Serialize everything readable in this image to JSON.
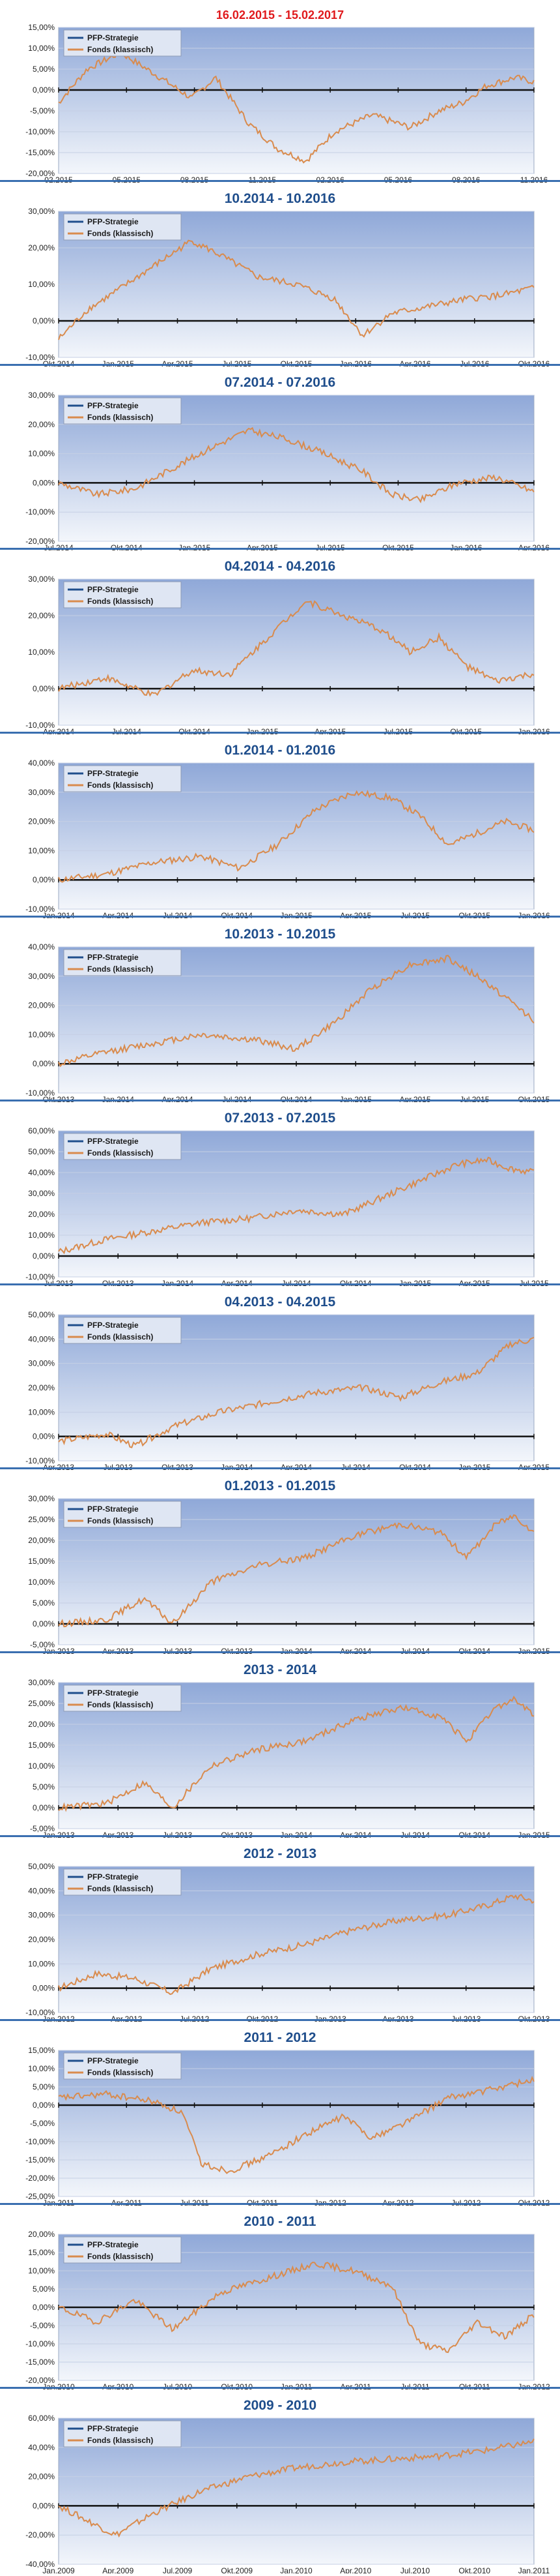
{
  "chart_data": [
    {
      "type": "line",
      "title": "16.02.2015 - 15.02.2017",
      "tick_labels": [
        "02.2015",
        "05.2015",
        "08.2015",
        "11.2015",
        "02.2016",
        "05.2016",
        "08.2016",
        "11.2016"
      ],
      "y_ticks": [
        "15,00%",
        "10,00%",
        "5,00%",
        "0,00%",
        "-5,00%",
        "-10,00%",
        "-15,00%",
        "-20,00%"
      ],
      "ylim": [
        -20,
        15
      ],
      "series": [
        {
          "name": "PFP-Strategie",
          "color": "#1f4e8c"
        },
        {
          "name": "Fonds (klassisch)",
          "color": "#d98b4d"
        }
      ],
      "points": [
        [
          0,
          -3
        ],
        [
          0.06,
          5
        ],
        [
          0.13,
          9
        ],
        [
          0.2,
          4
        ],
        [
          0.28,
          -2
        ],
        [
          0.33,
          3
        ],
        [
          0.4,
          -8
        ],
        [
          0.46,
          -14
        ],
        [
          0.52,
          -17
        ],
        [
          0.58,
          -10
        ],
        [
          0.66,
          -6
        ],
        [
          0.74,
          -9
        ],
        [
          0.8,
          -5
        ],
        [
          0.85,
          -3
        ],
        [
          0.9,
          1
        ],
        [
          0.96,
          3
        ],
        [
          1,
          2
        ]
      ],
      "legend": "top-left"
    },
    {
      "type": "line",
      "title": "10.2014 - 10.2016",
      "tick_labels": [
        "Okt.2014",
        "Jan.2015",
        "Apr.2015",
        "Jul.2015",
        "Okt.2015",
        "Jan.2016",
        "Apr.2016",
        "Jul.2016",
        "Okt.2016"
      ],
      "y_ticks": [
        "30,00%",
        "20,00%",
        "10,00%",
        "0,00%",
        "-10,00%"
      ],
      "ylim": [
        -10,
        30
      ],
      "series": [
        {
          "name": "PFP-Strategie",
          "color": "#1f4e8c"
        },
        {
          "name": "Fonds (klassisch)",
          "color": "#d98b4d"
        }
      ],
      "points": [
        [
          0,
          -5
        ],
        [
          0.06,
          3
        ],
        [
          0.12,
          8
        ],
        [
          0.2,
          15
        ],
        [
          0.28,
          22
        ],
        [
          0.34,
          18
        ],
        [
          0.42,
          12
        ],
        [
          0.5,
          10
        ],
        [
          0.58,
          6
        ],
        [
          0.64,
          -4
        ],
        [
          0.7,
          2
        ],
        [
          0.78,
          4
        ],
        [
          0.86,
          6
        ],
        [
          0.93,
          7
        ],
        [
          1,
          9
        ]
      ],
      "legend": "top-left"
    },
    {
      "type": "line",
      "title": "07.2014 - 07.2016",
      "tick_labels": [
        "Jul.2014",
        "Okt.2014",
        "Jan.2015",
        "Apr.2015",
        "Jul.2015",
        "Okt.2015",
        "Jan.2016",
        "Apr.2016"
      ],
      "y_ticks": [
        "30,00%",
        "20,00%",
        "10,00%",
        "0,00%",
        "-10,00%",
        "-20,00%"
      ],
      "ylim": [
        -20,
        30
      ],
      "series": [
        {
          "name": "PFP-Strategie",
          "color": "#1f4e8c"
        },
        {
          "name": "Fonds (klassisch)",
          "color": "#d98b4d"
        }
      ],
      "points": [
        [
          0,
          0
        ],
        [
          0.08,
          -4
        ],
        [
          0.16,
          -2
        ],
        [
          0.24,
          5
        ],
        [
          0.32,
          12
        ],
        [
          0.4,
          18
        ],
        [
          0.48,
          15
        ],
        [
          0.56,
          10
        ],
        [
          0.64,
          4
        ],
        [
          0.7,
          -4
        ],
        [
          0.76,
          -6
        ],
        [
          0.84,
          0
        ],
        [
          0.92,
          2
        ],
        [
          1,
          -3
        ]
      ],
      "legend": "top-left"
    },
    {
      "type": "line",
      "title": "04.2014 - 04.2016",
      "tick_labels": [
        "Apr.2014",
        "Jul.2014",
        "Okt.2014",
        "Jan.2015",
        "Apr.2015",
        "Jul.2015",
        "Okt.2015",
        "Jan.2016"
      ],
      "y_ticks": [
        "30,00%",
        "20,00%",
        "10,00%",
        "0,00%",
        "-10,00%"
      ],
      "ylim": [
        -10,
        30
      ],
      "series": [
        {
          "name": "PFP-Strategie",
          "color": "#1f4e8c"
        },
        {
          "name": "Fonds (klassisch)",
          "color": "#d98b4d"
        }
      ],
      "points": [
        [
          0,
          0
        ],
        [
          0.1,
          3
        ],
        [
          0.2,
          -2
        ],
        [
          0.28,
          5
        ],
        [
          0.36,
          4
        ],
        [
          0.44,
          14
        ],
        [
          0.52,
          24
        ],
        [
          0.6,
          20
        ],
        [
          0.68,
          16
        ],
        [
          0.74,
          10
        ],
        [
          0.8,
          14
        ],
        [
          0.86,
          6
        ],
        [
          0.92,
          2
        ],
        [
          1,
          4
        ]
      ],
      "legend": "top-left"
    },
    {
      "type": "line",
      "title": "01.2014 - 01.2016",
      "tick_labels": [
        "Jan.2014",
        "Apr.2014",
        "Jul.2014",
        "Okt.2014",
        "Jan.2015",
        "Apr.2015",
        "Jul.2015",
        "Okt.2015",
        "Jan.2016"
      ],
      "y_ticks": [
        "40,00%",
        "30,00%",
        "20,00%",
        "10,00%",
        "0,00%",
        "-10,00%"
      ],
      "ylim": [
        -10,
        40
      ],
      "series": [
        {
          "name": "PFP-Strategie",
          "color": "#1f4e8c"
        },
        {
          "name": "Fonds (klassisch)",
          "color": "#d98b4d"
        }
      ],
      "points": [
        [
          0,
          0
        ],
        [
          0.1,
          2
        ],
        [
          0.2,
          6
        ],
        [
          0.3,
          8
        ],
        [
          0.38,
          4
        ],
        [
          0.46,
          12
        ],
        [
          0.54,
          24
        ],
        [
          0.62,
          30
        ],
        [
          0.7,
          28
        ],
        [
          0.76,
          22
        ],
        [
          0.82,
          12
        ],
        [
          0.88,
          16
        ],
        [
          0.94,
          20
        ],
        [
          1,
          17
        ]
      ],
      "legend": "top-left"
    },
    {
      "type": "line",
      "title": "10.2013 - 10.2015",
      "tick_labels": [
        "Okt.2013",
        "Jan.2014",
        "Apr.2014",
        "Jul.2014",
        "Okt.2014",
        "Jan.2015",
        "Apr.2015",
        "Jul.2015",
        "Okt.2015"
      ],
      "y_ticks": [
        "40,00%",
        "30,00%",
        "20,00%",
        "10,00%",
        "0,00%",
        "-10,00%"
      ],
      "ylim": [
        -10,
        40
      ],
      "series": [
        {
          "name": "PFP-Strategie",
          "color": "#1f4e8c"
        },
        {
          "name": "Fonds (klassisch)",
          "color": "#d98b4d"
        }
      ],
      "points": [
        [
          0,
          0
        ],
        [
          0.1,
          4
        ],
        [
          0.2,
          7
        ],
        [
          0.3,
          10
        ],
        [
          0.42,
          8
        ],
        [
          0.5,
          5
        ],
        [
          0.58,
          14
        ],
        [
          0.66,
          26
        ],
        [
          0.74,
          34
        ],
        [
          0.82,
          36
        ],
        [
          0.88,
          30
        ],
        [
          0.93,
          24
        ],
        [
          1,
          15
        ]
      ],
      "legend": "top-left"
    },
    {
      "type": "line",
      "title": "07.2013 - 07.2015",
      "tick_labels": [
        "Jul.2013",
        "Okt.2013",
        "Jan.2014",
        "Apr.2014",
        "Jul.2014",
        "Okt.2014",
        "Jan.2015",
        "Apr.2015",
        "Jul.2015"
      ],
      "y_ticks": [
        "60,00%",
        "50,00%",
        "40,00%",
        "30,00%",
        "20,00%",
        "10,00%",
        "0,00%",
        "-10,00%"
      ],
      "ylim": [
        -10,
        60
      ],
      "series": [
        {
          "name": "PFP-Strategie",
          "color": "#1f4e8c"
        },
        {
          "name": "Fonds (klassisch)",
          "color": "#d98b4d"
        }
      ],
      "points": [
        [
          0,
          2
        ],
        [
          0.1,
          8
        ],
        [
          0.2,
          12
        ],
        [
          0.3,
          16
        ],
        [
          0.4,
          18
        ],
        [
          0.5,
          22
        ],
        [
          0.6,
          20
        ],
        [
          0.68,
          28
        ],
        [
          0.76,
          36
        ],
        [
          0.84,
          44
        ],
        [
          0.9,
          46
        ],
        [
          0.95,
          42
        ],
        [
          1,
          40
        ]
      ],
      "legend": "top-left"
    },
    {
      "type": "line",
      "title": "04.2013 - 04.2015",
      "tick_labels": [
        "Apr.2013",
        "Jul.2013",
        "Okt.2013",
        "Jan.2014",
        "Apr.2014",
        "Jul.2014",
        "Okt.2014",
        "Jan.2015",
        "Apr.2015"
      ],
      "y_ticks": [
        "50,00%",
        "40,00%",
        "30,00%",
        "20,00%",
        "10,00%",
        "0,00%",
        "-10,00%"
      ],
      "ylim": [
        -10,
        50
      ],
      "series": [
        {
          "name": "PFP-Strategie",
          "color": "#1f4e8c"
        },
        {
          "name": "Fonds (klassisch)",
          "color": "#d98b4d"
        }
      ],
      "points": [
        [
          0,
          -2
        ],
        [
          0.1,
          1
        ],
        [
          0.16,
          -4
        ],
        [
          0.24,
          4
        ],
        [
          0.34,
          10
        ],
        [
          0.44,
          14
        ],
        [
          0.54,
          18
        ],
        [
          0.64,
          20
        ],
        [
          0.72,
          16
        ],
        [
          0.8,
          22
        ],
        [
          0.88,
          26
        ],
        [
          0.95,
          38
        ],
        [
          1,
          40
        ]
      ],
      "legend": "top-left"
    },
    {
      "type": "line",
      "title": "01.2013 - 01.2015",
      "tick_labels": [
        "Jan.2013",
        "Apr.2013",
        "Jul.2013",
        "Okt.2013",
        "Jan.2014",
        "Apr.2014",
        "Jul.2014",
        "Okt.2014",
        "Jan.2015"
      ],
      "y_ticks": [
        "30,00%",
        "25,00%",
        "20,00%",
        "15,00%",
        "10,00%",
        "5,00%",
        "0,00%",
        "-5,00%"
      ],
      "ylim": [
        -5,
        30
      ],
      "series": [
        {
          "name": "PFP-Strategie",
          "color": "#1f4e8c"
        },
        {
          "name": "Fonds (klassisch)",
          "color": "#d98b4d"
        }
      ],
      "points": [
        [
          0,
          0
        ],
        [
          0.1,
          1
        ],
        [
          0.18,
          6
        ],
        [
          0.24,
          0
        ],
        [
          0.32,
          10
        ],
        [
          0.42,
          14
        ],
        [
          0.52,
          16
        ],
        [
          0.62,
          21
        ],
        [
          0.72,
          24
        ],
        [
          0.8,
          22
        ],
        [
          0.86,
          16
        ],
        [
          0.92,
          24
        ],
        [
          0.96,
          26
        ],
        [
          1,
          22
        ]
      ],
      "legend": "top-left"
    },
    {
      "type": "line",
      "title": "2013 - 2014",
      "tick_labels": [
        "Jan.2013",
        "Apr.2013",
        "Jul.2013",
        "Okt.2013",
        "Jan.2014",
        "Apr.2014",
        "Jul.2014",
        "Okt.2014",
        "Jan.2015"
      ],
      "y_ticks": [
        "30,00%",
        "25,00%",
        "20,00%",
        "15,00%",
        "10,00%",
        "5,00%",
        "0,00%",
        "-5,00%"
      ],
      "ylim": [
        -5,
        30
      ],
      "series": [
        {
          "name": "PFP-Strategie",
          "color": "#1f4e8c"
        },
        {
          "name": "Fonds (klassisch)",
          "color": "#d98b4d"
        }
      ],
      "points": [
        [
          0,
          0
        ],
        [
          0.1,
          1
        ],
        [
          0.18,
          6
        ],
        [
          0.24,
          0
        ],
        [
          0.32,
          10
        ],
        [
          0.42,
          14
        ],
        [
          0.52,
          16
        ],
        [
          0.62,
          21
        ],
        [
          0.72,
          24
        ],
        [
          0.8,
          22
        ],
        [
          0.86,
          16
        ],
        [
          0.92,
          24
        ],
        [
          0.96,
          26
        ],
        [
          1,
          22
        ]
      ],
      "legend": "top-left"
    },
    {
      "type": "line",
      "title": "2012 - 2013",
      "tick_labels": [
        "Jan.2012",
        "Apr.2012",
        "Jul.2012",
        "Okt.2012",
        "Jan.2013",
        "Apr.2013",
        "Jul.2013",
        "Okt.2013"
      ],
      "y_ticks": [
        "50,00%",
        "40,00%",
        "30,00%",
        "20,00%",
        "10,00%",
        "0,00%",
        "-10,00%"
      ],
      "ylim": [
        -10,
        50
      ],
      "series": [
        {
          "name": "PFP-Strategie",
          "color": "#1f4e8c"
        },
        {
          "name": "Fonds (klassisch)",
          "color": "#d98b4d"
        }
      ],
      "points": [
        [
          0,
          0
        ],
        [
          0.08,
          6
        ],
        [
          0.16,
          4
        ],
        [
          0.24,
          -2
        ],
        [
          0.32,
          8
        ],
        [
          0.42,
          14
        ],
        [
          0.52,
          18
        ],
        [
          0.62,
          24
        ],
        [
          0.72,
          28
        ],
        [
          0.82,
          30
        ],
        [
          0.9,
          34
        ],
        [
          0.96,
          38
        ],
        [
          1,
          36
        ]
      ],
      "legend": "top-left"
    },
    {
      "type": "line",
      "title": "2011 - 2012",
      "tick_labels": [
        "Jan.2011",
        "Apr.2011",
        "Jul.2011",
        "Okt.2011",
        "Jan.2012",
        "Apr.2012",
        "Jul.2012",
        "Okt.2012"
      ],
      "y_ticks": [
        "15,00%",
        "10,00%",
        "5,00%",
        "0,00%",
        "-5,00%",
        "-10,00%",
        "-15,00%",
        "-20,00%",
        "-25,00%"
      ],
      "ylim": [
        -25,
        15
      ],
      "series": [
        {
          "name": "PFP-Strategie",
          "color": "#1f4e8c"
        },
        {
          "name": "Fonds (klassisch)",
          "color": "#d98b4d"
        }
      ],
      "points": [
        [
          0,
          2
        ],
        [
          0.1,
          3
        ],
        [
          0.2,
          1
        ],
        [
          0.26,
          -2
        ],
        [
          0.3,
          -16
        ],
        [
          0.36,
          -18
        ],
        [
          0.44,
          -14
        ],
        [
          0.52,
          -8
        ],
        [
          0.6,
          -3
        ],
        [
          0.66,
          -9
        ],
        [
          0.74,
          -4
        ],
        [
          0.82,
          2
        ],
        [
          0.9,
          4
        ],
        [
          1,
          7
        ]
      ],
      "legend": "top-left"
    },
    {
      "type": "line",
      "title": "2010 - 2011",
      "tick_labels": [
        "Jan.2010",
        "Apr.2010",
        "Jul.2010",
        "Okt.2010",
        "Jan.2011",
        "Apr.2011",
        "Jul.2011",
        "Okt.2011",
        "Jan.2012"
      ],
      "y_ticks": [
        "20,00%",
        "15,00%",
        "10,00%",
        "5,00%",
        "0,00%",
        "-5,00%",
        "-10,00%",
        "-15,00%",
        "-20,00%"
      ],
      "ylim": [
        -20,
        20
      ],
      "series": [
        {
          "name": "PFP-Strategie",
          "color": "#1f4e8c"
        },
        {
          "name": "Fonds (klassisch)",
          "color": "#d98b4d"
        }
      ],
      "points": [
        [
          0,
          0
        ],
        [
          0.08,
          -4
        ],
        [
          0.16,
          2
        ],
        [
          0.24,
          -6
        ],
        [
          0.34,
          4
        ],
        [
          0.44,
          8
        ],
        [
          0.54,
          12
        ],
        [
          0.62,
          10
        ],
        [
          0.7,
          6
        ],
        [
          0.76,
          -10
        ],
        [
          0.82,
          -12
        ],
        [
          0.88,
          -4
        ],
        [
          0.94,
          -8
        ],
        [
          1,
          -2
        ]
      ],
      "legend": "top-left"
    },
    {
      "type": "line",
      "title": "2009 - 2010",
      "tick_labels": [
        "Jan.2009",
        "Apr.2009",
        "Jul.2009",
        "Okt.2009",
        "Jan.2010",
        "Apr.2010",
        "Jul.2010",
        "Okt.2010",
        "Jan.2011"
      ],
      "y_ticks": [
        "60,00%",
        "40,00%",
        "20,00%",
        "0,00%",
        "-20,00%",
        "-40,00%"
      ],
      "ylim": [
        -40,
        60
      ],
      "series": [
        {
          "name": "PFP-Strategie",
          "color": "#1f4e8c"
        },
        {
          "name": "Fonds (klassisch)",
          "color": "#d98b4d"
        }
      ],
      "points": [
        [
          0,
          0
        ],
        [
          0.06,
          -10
        ],
        [
          0.12,
          -20
        ],
        [
          0.2,
          -5
        ],
        [
          0.3,
          10
        ],
        [
          0.4,
          20
        ],
        [
          0.5,
          26
        ],
        [
          0.6,
          30
        ],
        [
          0.7,
          32
        ],
        [
          0.8,
          34
        ],
        [
          0.9,
          38
        ],
        [
          1,
          44
        ]
      ],
      "legend": "top-left"
    }
  ]
}
